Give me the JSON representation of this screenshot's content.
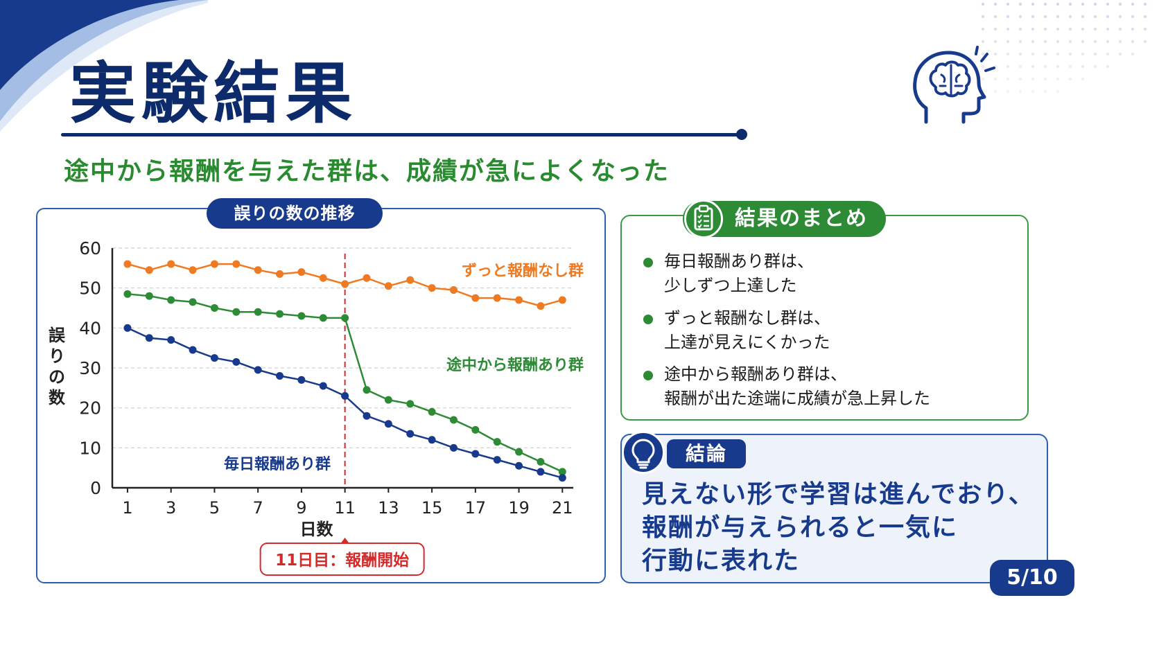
{
  "header": {
    "title": "実験結果",
    "subtitle": "途中から報酬を与えた群は、成績が急によくなった"
  },
  "chart_panel": {
    "title": "誤りの数の推移"
  },
  "chart_data": {
    "type": "line",
    "title": "誤りの数の推移",
    "xlabel": "日数",
    "ylabel": "誤りの数",
    "x": [
      1,
      2,
      3,
      4,
      5,
      6,
      7,
      8,
      9,
      10,
      11,
      12,
      13,
      14,
      15,
      16,
      17,
      18,
      19,
      20,
      21
    ],
    "xticks": [
      1,
      3,
      5,
      7,
      9,
      11,
      13,
      15,
      17,
      19,
      21
    ],
    "yticks": [
      0,
      10,
      20,
      30,
      40,
      50,
      60
    ],
    "xlim": [
      0.3,
      21.5
    ],
    "ylim": [
      0,
      60
    ],
    "grid": "horizontal dashed",
    "series": [
      {
        "name": "ずっと報酬なし群",
        "color": "#f07a22",
        "values": [
          56,
          54.5,
          56,
          54.5,
          56,
          56,
          54.5,
          53.5,
          54,
          52.5,
          51,
          52.5,
          50.5,
          52,
          50,
          49.5,
          47.5,
          47.5,
          47,
          45.5,
          47
        ]
      },
      {
        "name": "途中から報酬あり群",
        "color": "#2d8a35",
        "values": [
          48.5,
          48,
          47,
          46.5,
          45,
          44,
          44,
          43.5,
          43,
          42.5,
          42.5,
          24.5,
          22,
          21,
          19,
          17,
          14.5,
          11.5,
          9,
          6.5,
          4
        ]
      },
      {
        "name": "毎日報酬あり群",
        "color": "#173a8c",
        "values": [
          40,
          37.5,
          37,
          34.5,
          32.5,
          31.5,
          29.5,
          28,
          27,
          25.5,
          23,
          18,
          16,
          13.5,
          12,
          10,
          8.5,
          7,
          5.5,
          4,
          2.5
        ]
      }
    ],
    "event_line": {
      "x": 11,
      "label": "11日目：報酬開始",
      "color": "#d42a2a"
    }
  },
  "summary": {
    "title": "結果のまとめ",
    "items": [
      {
        "line1": "毎日報酬あり群は、",
        "line2": "少しずつ上達した"
      },
      {
        "line1": "ずっと報酬なし群は、",
        "line2": "上達が見えにくかった"
      },
      {
        "line1": "途中から報酬あり群は、",
        "line2": "報酬が出た途端に成績が急上昇した"
      }
    ]
  },
  "conclusion": {
    "label": "結論",
    "lines": [
      "見えない形で学習は進んでおり、",
      "報酬が与えられると一気に",
      "行動に表れた"
    ]
  },
  "page_number": "5/10",
  "icons": [
    "brain-head-icon",
    "clipboard-checklist-icon",
    "lightbulb-icon"
  ],
  "colors": {
    "navy": "#173a8c",
    "green": "#2d8a35",
    "orange": "#f07a22",
    "red": "#d42a2a"
  }
}
